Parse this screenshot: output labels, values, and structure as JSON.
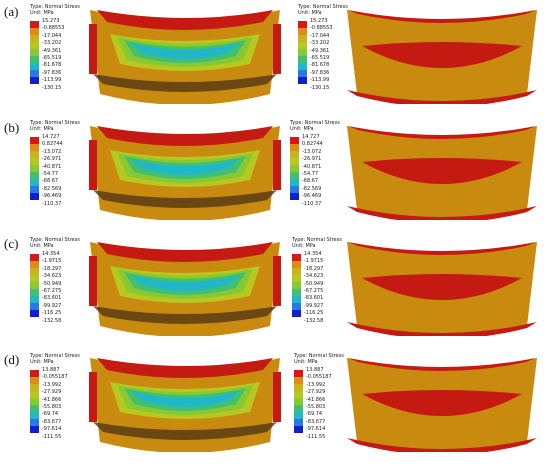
{
  "panels": [
    {
      "label": "(a)",
      "title": "Type: Normal Stress",
      "unit": "Unit: MPa",
      "values": [
        "15.273",
        "-0.88553",
        "-17.044",
        "-33.202",
        "-49.361",
        "-65.519",
        "-81.678",
        "-97.836",
        "-113.99",
        "-130.15"
      ]
    },
    {
      "label": "(b)",
      "title": "Type: Normal Stress",
      "unit": "Unit: MPa",
      "values": [
        "14.727",
        "0.82744",
        "-13.072",
        "-26.971",
        "-40.871",
        "-54.77",
        "-68.67",
        "-82.569",
        "-96.469",
        "-110.37"
      ]
    },
    {
      "label": "(c)",
      "title": "Type: Normal Stress",
      "unit": "Unit: MPa",
      "values": [
        "14.354",
        "-1.9715",
        "-18.297",
        "-34.623",
        "-50.949",
        "-67.275",
        "-83.601",
        "-99.927",
        "-116.25",
        "-132.58"
      ]
    },
    {
      "label": "(d)",
      "title": "Type: Normal Stress",
      "unit": "Unit: MPa",
      "values": [
        "13.887",
        "-0.055187",
        "-13.992",
        "-27.929",
        "-41.866",
        "-55.803",
        "-69.74",
        "-83.677",
        "-97.614",
        "-111.55"
      ]
    }
  ],
  "colors": {
    "scale": [
      "#d71818",
      "#e08a18",
      "#c9b41a",
      "#b8c820",
      "#88c830",
      "#40c070",
      "#20b8c8",
      "#2878e8",
      "#1020d0"
    ],
    "orange": "#c98a10",
    "red": "#c41a12",
    "dark_band": "#5a3c14"
  }
}
